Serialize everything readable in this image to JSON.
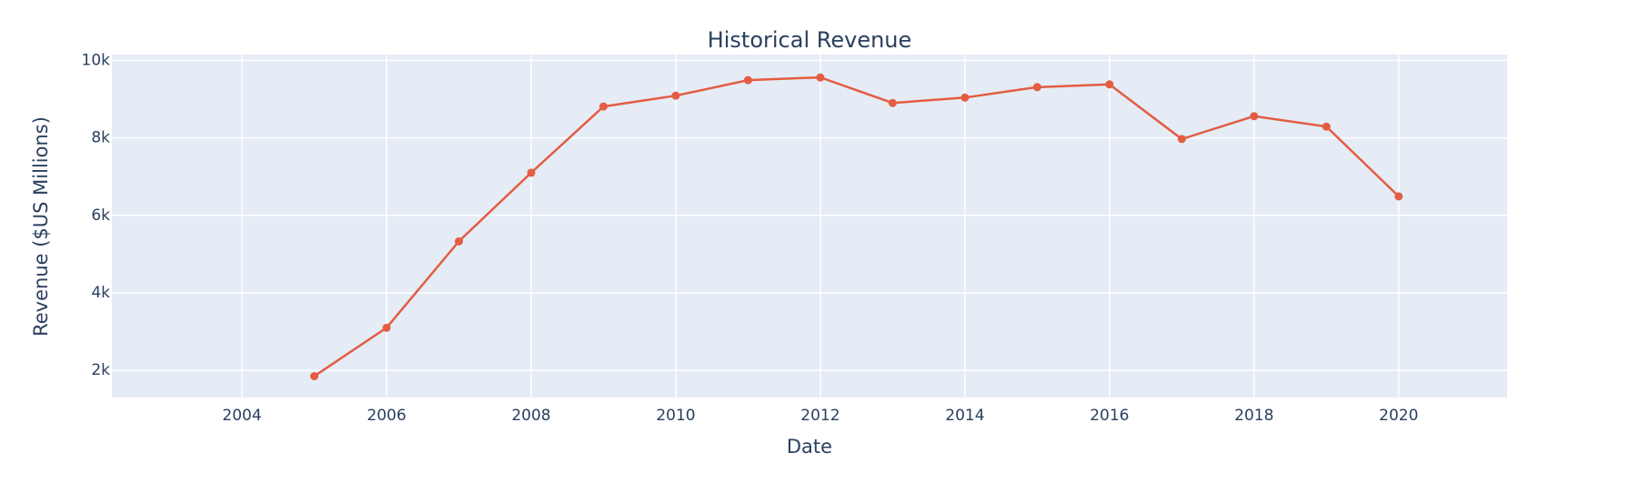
{
  "chart_data": {
    "type": "line",
    "title": "Historical Revenue",
    "xlabel": "Date",
    "ylabel": "Revenue ($US Millions)",
    "x": [
      2005,
      2006,
      2007,
      2008,
      2009,
      2010,
      2011,
      2012,
      2013,
      2014,
      2015,
      2016,
      2017,
      2018,
      2019,
      2020
    ],
    "series": [
      {
        "name": "",
        "values": [
          1850,
          3100,
          5330,
          7100,
          8810,
          9090,
          9490,
          9560,
          8900,
          9040,
          9310,
          9380,
          7970,
          8560,
          8290,
          6490
        ]
      }
    ],
    "xlim": [
      2002.2,
      2021.5
    ],
    "ylim": [
      1300,
      10150
    ],
    "x_ticks": [
      2004,
      2006,
      2008,
      2010,
      2012,
      2014,
      2016,
      2018,
      2020
    ],
    "y_ticks": [
      2000,
      4000,
      6000,
      8000,
      10000
    ],
    "y_tick_labels": [
      "2k",
      "4k",
      "6k",
      "8k",
      "10k"
    ],
    "grid": true,
    "line_color": "#e45c43",
    "plot_background": "#e5ecf6",
    "grid_color": "#ffffff"
  }
}
